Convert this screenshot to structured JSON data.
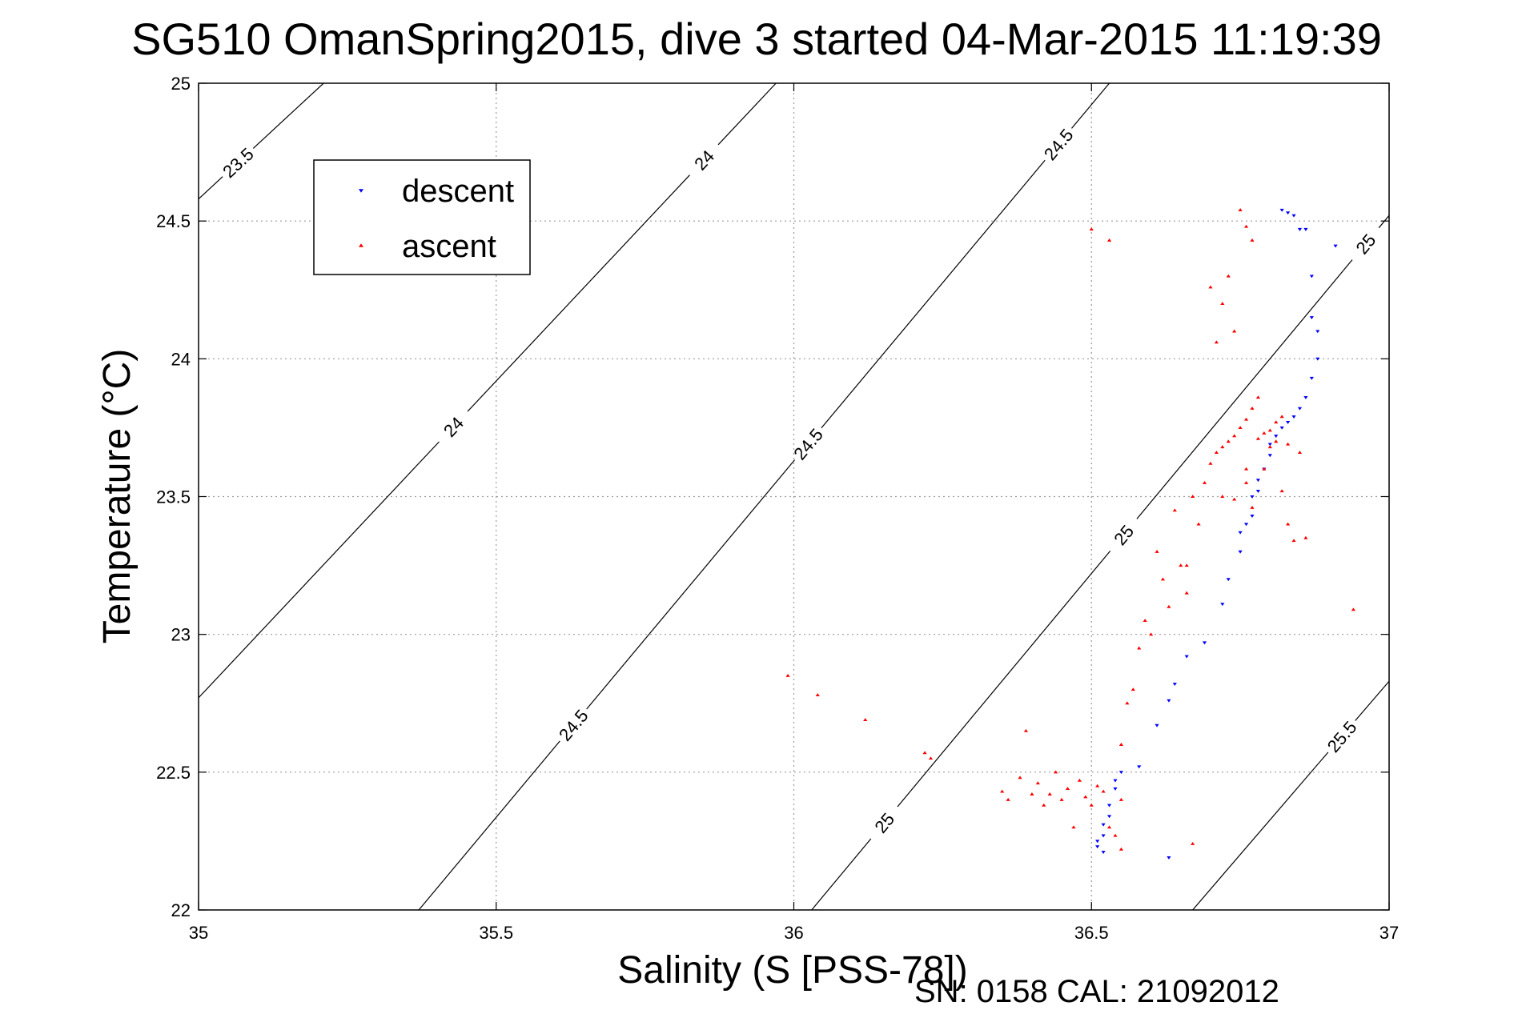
{
  "chart_data": {
    "type": "scatter",
    "title": "SG510 OmanSpring2015, dive 3 started 04-Mar-2015 11:19:39",
    "xlabel": "Salinity (S [PSS-78])",
    "ylabel": "Temperature (°C)",
    "xlim": [
      35,
      37
    ],
    "ylim": [
      22,
      25
    ],
    "x_ticks": [
      "35",
      "35.5",
      "36",
      "36.5",
      "37"
    ],
    "y_ticks": [
      "22",
      "22.5",
      "23",
      "23.5",
      "24",
      "24.5",
      "25"
    ],
    "grid": true,
    "legend": {
      "placement": "top-left",
      "entries": [
        "descent",
        "ascent"
      ]
    },
    "footer": "SN: 0158  CAL: 21092012",
    "density_contours": [
      {
        "label": "23.5",
        "points": [
          [
            35.0,
            24.58
          ],
          [
            35.21,
            25.0
          ]
        ],
        "label_positions": [
          [
            35.08,
            24.68
          ]
        ]
      },
      {
        "label": "24",
        "points": [
          [
            35.0,
            22.77
          ],
          [
            35.97,
            25.0
          ]
        ],
        "label_positions": [
          [
            35.43,
            23.75
          ],
          [
            35.85,
            24.72
          ]
        ]
      },
      {
        "label": "24.5",
        "points": [
          [
            35.37,
            22.0
          ],
          [
            36.53,
            25.0
          ]
        ],
        "label_positions": [
          [
            35.63,
            22.67
          ],
          [
            36.03,
            23.68
          ],
          [
            36.46,
            24.75
          ]
        ]
      },
      {
        "label": "25",
        "points": [
          [
            36.03,
            22.0
          ],
          [
            37.0,
            24.52
          ]
        ],
        "label_positions": [
          [
            36.15,
            22.32
          ],
          [
            36.56,
            23.35
          ],
          [
            36.97,
            24.4
          ]
        ]
      },
      {
        "label": "25.5",
        "points": [
          [
            36.67,
            22.0
          ],
          [
            37.0,
            22.83
          ]
        ],
        "label_positions": [
          [
            36.92,
            22.63
          ]
        ]
      }
    ],
    "series": [
      {
        "name": "descent",
        "color": "#0000ff",
        "marker": "triangle-down",
        "points": [
          [
            36.51,
            22.25
          ],
          [
            36.51,
            22.23
          ],
          [
            36.52,
            22.27
          ],
          [
            36.52,
            22.31
          ],
          [
            36.53,
            22.34
          ],
          [
            36.53,
            22.38
          ],
          [
            36.54,
            22.44
          ],
          [
            36.54,
            22.47
          ],
          [
            36.55,
            22.5
          ],
          [
            36.58,
            22.52
          ],
          [
            36.61,
            22.67
          ],
          [
            36.63,
            22.76
          ],
          [
            36.64,
            22.82
          ],
          [
            36.66,
            22.92
          ],
          [
            36.69,
            22.97
          ],
          [
            36.72,
            23.11
          ],
          [
            36.73,
            23.2
          ],
          [
            36.75,
            23.3
          ],
          [
            36.75,
            23.37
          ],
          [
            36.76,
            23.4
          ],
          [
            36.77,
            23.43
          ],
          [
            36.77,
            23.5
          ],
          [
            36.78,
            23.52
          ],
          [
            36.78,
            23.56
          ],
          [
            36.79,
            23.6
          ],
          [
            36.8,
            23.65
          ],
          [
            36.8,
            23.69
          ],
          [
            36.81,
            23.72
          ],
          [
            36.82,
            23.75
          ],
          [
            36.83,
            23.77
          ],
          [
            36.84,
            23.79
          ],
          [
            36.85,
            23.82
          ],
          [
            36.86,
            23.86
          ],
          [
            36.87,
            23.93
          ],
          [
            36.88,
            24.0
          ],
          [
            36.88,
            24.1
          ],
          [
            36.87,
            24.15
          ],
          [
            36.87,
            24.3
          ],
          [
            36.86,
            24.47
          ],
          [
            36.85,
            24.47
          ],
          [
            36.84,
            24.52
          ],
          [
            36.83,
            24.53
          ],
          [
            36.82,
            24.54
          ],
          [
            36.91,
            24.41
          ],
          [
            36.63,
            22.19
          ],
          [
            36.52,
            22.21
          ]
        ]
      },
      {
        "name": "ascent",
        "color": "#ff0000",
        "marker": "triangle-up",
        "points": [
          [
            35.99,
            22.85
          ],
          [
            36.04,
            22.78
          ],
          [
            36.12,
            22.69
          ],
          [
            36.22,
            22.57
          ],
          [
            36.23,
            22.55
          ],
          [
            36.35,
            22.43
          ],
          [
            36.36,
            22.4
          ],
          [
            36.38,
            22.48
          ],
          [
            36.39,
            22.65
          ],
          [
            36.4,
            22.42
          ],
          [
            36.41,
            22.46
          ],
          [
            36.42,
            22.38
          ],
          [
            36.43,
            22.42
          ],
          [
            36.44,
            22.5
          ],
          [
            36.45,
            22.4
          ],
          [
            36.46,
            22.44
          ],
          [
            36.47,
            22.3
          ],
          [
            36.48,
            22.47
          ],
          [
            36.49,
            22.41
          ],
          [
            36.5,
            22.38
          ],
          [
            36.51,
            22.45
          ],
          [
            36.52,
            22.43
          ],
          [
            36.53,
            22.3
          ],
          [
            36.54,
            22.27
          ],
          [
            36.55,
            22.4
          ],
          [
            36.55,
            22.22
          ],
          [
            36.55,
            22.6
          ],
          [
            36.56,
            22.75
          ],
          [
            36.57,
            22.8
          ],
          [
            36.58,
            22.95
          ],
          [
            36.59,
            23.05
          ],
          [
            36.6,
            23.0
          ],
          [
            36.61,
            23.3
          ],
          [
            36.62,
            23.2
          ],
          [
            36.63,
            23.1
          ],
          [
            36.64,
            23.45
          ],
          [
            36.65,
            23.25
          ],
          [
            36.66,
            23.15
          ],
          [
            36.67,
            23.5
          ],
          [
            36.68,
            23.4
          ],
          [
            36.69,
            23.55
          ],
          [
            36.7,
            23.62
          ],
          [
            36.71,
            23.66
          ],
          [
            36.72,
            23.68
          ],
          [
            36.73,
            23.7
          ],
          [
            36.74,
            23.72
          ],
          [
            36.75,
            23.75
          ],
          [
            36.76,
            23.78
          ],
          [
            36.77,
            23.82
          ],
          [
            36.78,
            23.86
          ],
          [
            36.79,
            23.6
          ],
          [
            36.8,
            23.68
          ],
          [
            36.81,
            23.7
          ],
          [
            36.82,
            23.52
          ],
          [
            36.83,
            23.4
          ],
          [
            36.84,
            23.34
          ],
          [
            36.85,
            23.66
          ],
          [
            36.86,
            23.35
          ],
          [
            36.94,
            23.09
          ],
          [
            36.7,
            24.26
          ],
          [
            36.71,
            24.06
          ],
          [
            36.72,
            24.2
          ],
          [
            36.73,
            24.3
          ],
          [
            36.74,
            24.1
          ],
          [
            36.75,
            24.54
          ],
          [
            36.76,
            24.48
          ],
          [
            36.77,
            24.43
          ],
          [
            36.5,
            24.47
          ],
          [
            36.53,
            24.43
          ],
          [
            36.67,
            22.24
          ],
          [
            36.72,
            23.5
          ],
          [
            36.74,
            23.49
          ],
          [
            36.66,
            23.25
          ],
          [
            36.76,
            23.6
          ],
          [
            36.8,
            23.74
          ],
          [
            36.81,
            23.77
          ],
          [
            36.79,
            23.73
          ],
          [
            36.78,
            23.71
          ],
          [
            36.82,
            23.79
          ],
          [
            36.83,
            23.69
          ],
          [
            36.76,
            23.55
          ],
          [
            36.77,
            23.46
          ]
        ]
      }
    ]
  }
}
